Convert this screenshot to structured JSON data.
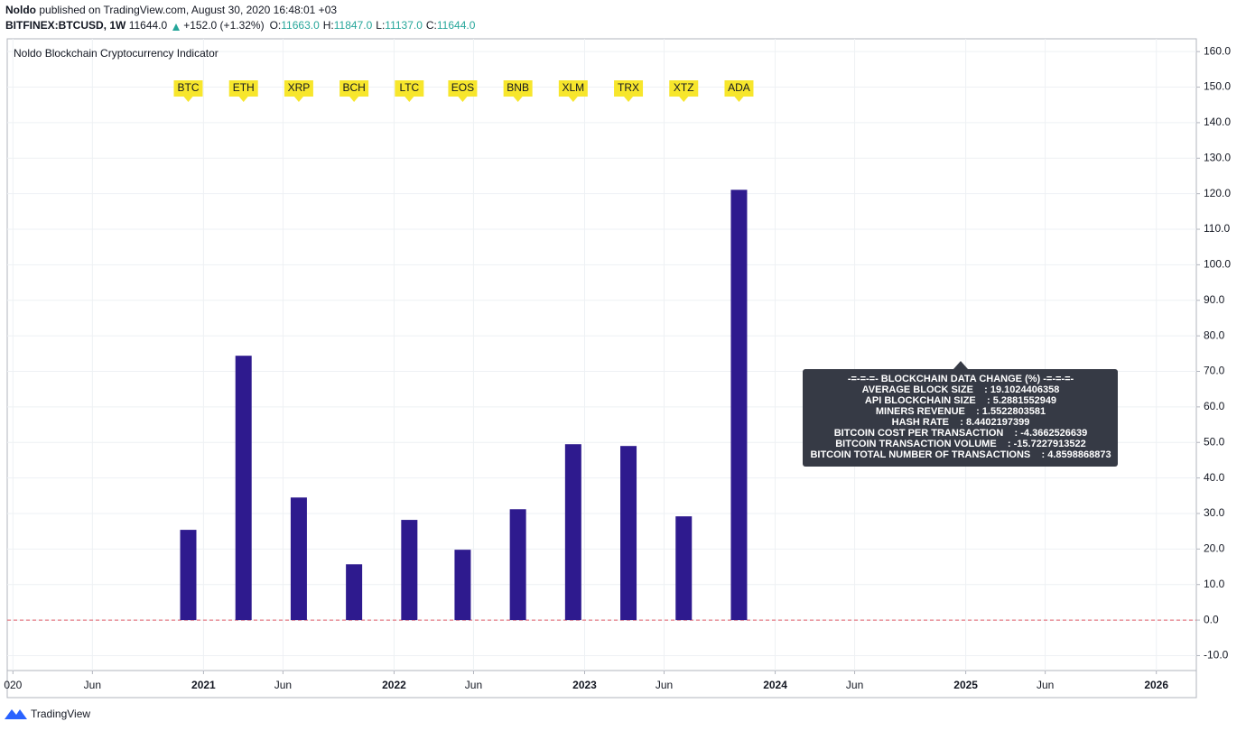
{
  "header": {
    "author": "Noldo",
    "published": "published on TradingView.com, August 30, 2020 16:48:01 +03",
    "symbol": "BITFINEX:BTCUSD, 1W",
    "last": "11644.0",
    "change": "+152.0 (+1.32%)",
    "ohlc": [
      {
        "label": "O:",
        "value": "11663.0"
      },
      {
        "label": "H:",
        "value": "11847.0"
      },
      {
        "label": "L:",
        "value": "11137.0"
      },
      {
        "label": "C:",
        "value": "11644.0"
      }
    ]
  },
  "chart_data": {
    "type": "bar",
    "title": "Noldo Blockchain Cryptocurrency Indicator",
    "categories": [
      "BTC",
      "ETH",
      "XRP",
      "BCH",
      "LTC",
      "EOS",
      "BNB",
      "XLM",
      "TRX",
      "XTZ",
      "ADA"
    ],
    "x": [
      2020.92,
      2021.21,
      2021.5,
      2021.79,
      2022.08,
      2022.36,
      2022.65,
      2022.94,
      2023.23,
      2023.52,
      2023.81
    ],
    "values": [
      25.4,
      74.4,
      34.5,
      15.7,
      28.2,
      19.8,
      31.2,
      49.5,
      49.0,
      29.2,
      121.1
    ],
    "color": "#2e1a8e",
    "xlim": [
      2019.97,
      2026.21
    ],
    "xticks": [
      {
        "value": 2020,
        "label": "020"
      },
      {
        "value": 2020.417,
        "label": "Jun"
      },
      2021,
      {
        "value": 2021.417,
        "label": "Jun"
      },
      2022,
      {
        "value": 2022.417,
        "label": "Jun"
      },
      2023,
      {
        "value": 2023.417,
        "label": "Jun"
      },
      2024,
      {
        "value": 2024.417,
        "label": "Jun"
      },
      2025,
      {
        "value": 2025.417,
        "label": "Jun"
      },
      2026
    ],
    "ylim": [
      -14.2,
      163.6
    ],
    "yticks": [
      {
        "value": -10,
        "label": "-10.0"
      },
      {
        "value": 0,
        "label": "0.0"
      },
      {
        "value": 10,
        "label": "10.0"
      },
      {
        "value": 20,
        "label": "20.0"
      },
      {
        "value": 30,
        "label": "30.0"
      },
      {
        "value": 40,
        "label": "40.0"
      },
      {
        "value": 50,
        "label": "50.0"
      },
      {
        "value": 60,
        "label": "60.0"
      },
      {
        "value": 70,
        "label": "70.0"
      },
      {
        "value": 80,
        "label": "80.0"
      },
      {
        "value": 90,
        "label": "90.0"
      },
      {
        "value": 100,
        "label": "100.0"
      },
      {
        "value": 110,
        "label": "110.0"
      },
      {
        "value": 120,
        "label": "120.0"
      },
      {
        "value": 130,
        "label": "130.0"
      },
      {
        "value": 140,
        "label": "140.0"
      },
      {
        "value": 150,
        "label": "150.0"
      },
      {
        "value": 160,
        "label": "160.0"
      }
    ],
    "grid": true,
    "annotation": [
      "-=-=-=- BLOCKCHAIN DATA CHANGE (%) -=-=-=-",
      "AVERAGE BLOCK SIZE    : 19.1024406358",
      "API BLOCKCHAIN SIZE    : 5.2881552949",
      "MINERS REVENUE    : 1.5522803581",
      "HASH RATE    : 8.4402197399",
      "BITCOIN COST PER TRANSACTION    : -4.3662526639",
      "BITCOIN TRANSACTION VOLUME    : -15.7227913522",
      "BITCOIN TOTAL NUMBER OF TRANSACTIONS    : 4.8598868873"
    ]
  },
  "footer": {
    "brand": "TradingView"
  }
}
